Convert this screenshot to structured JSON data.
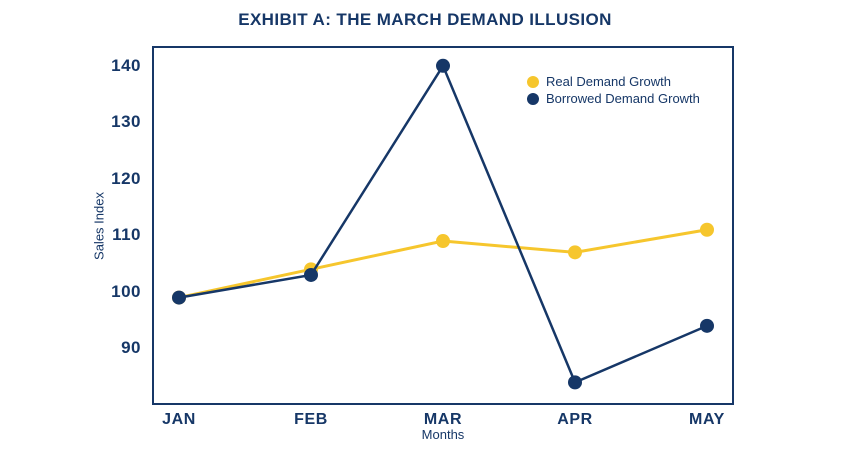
{
  "title": "EXHIBIT A: THE MARCH DEMAND ILLUSION",
  "chart_data": {
    "type": "line",
    "title": "EXHIBIT A: THE MARCH DEMAND ILLUSION",
    "categories": [
      "JAN",
      "FEB",
      "MAR",
      "APR",
      "MAY"
    ],
    "series": [
      {
        "name": "Real Demand Growth",
        "color": "#F6C62D",
        "values": [
          99,
          104,
          109,
          107,
          111
        ]
      },
      {
        "name": "Borrowed Demand Growth",
        "color": "#163767",
        "values": [
          99,
          103,
          140,
          84,
          94
        ]
      }
    ],
    "xlabel": "Months",
    "ylabel": "Sales Index",
    "yticks": [
      90,
      100,
      110,
      120,
      130,
      140
    ],
    "ylim": [
      80,
      143.5
    ],
    "grid": false,
    "legend_position": "top-right",
    "marker": "circle",
    "marker_radius": 7
  },
  "colors": {
    "navy": "#163767",
    "yellow": "#F6C62D",
    "background": "#FFFFFF",
    "plot_border": "#163767",
    "text": "#163767"
  }
}
